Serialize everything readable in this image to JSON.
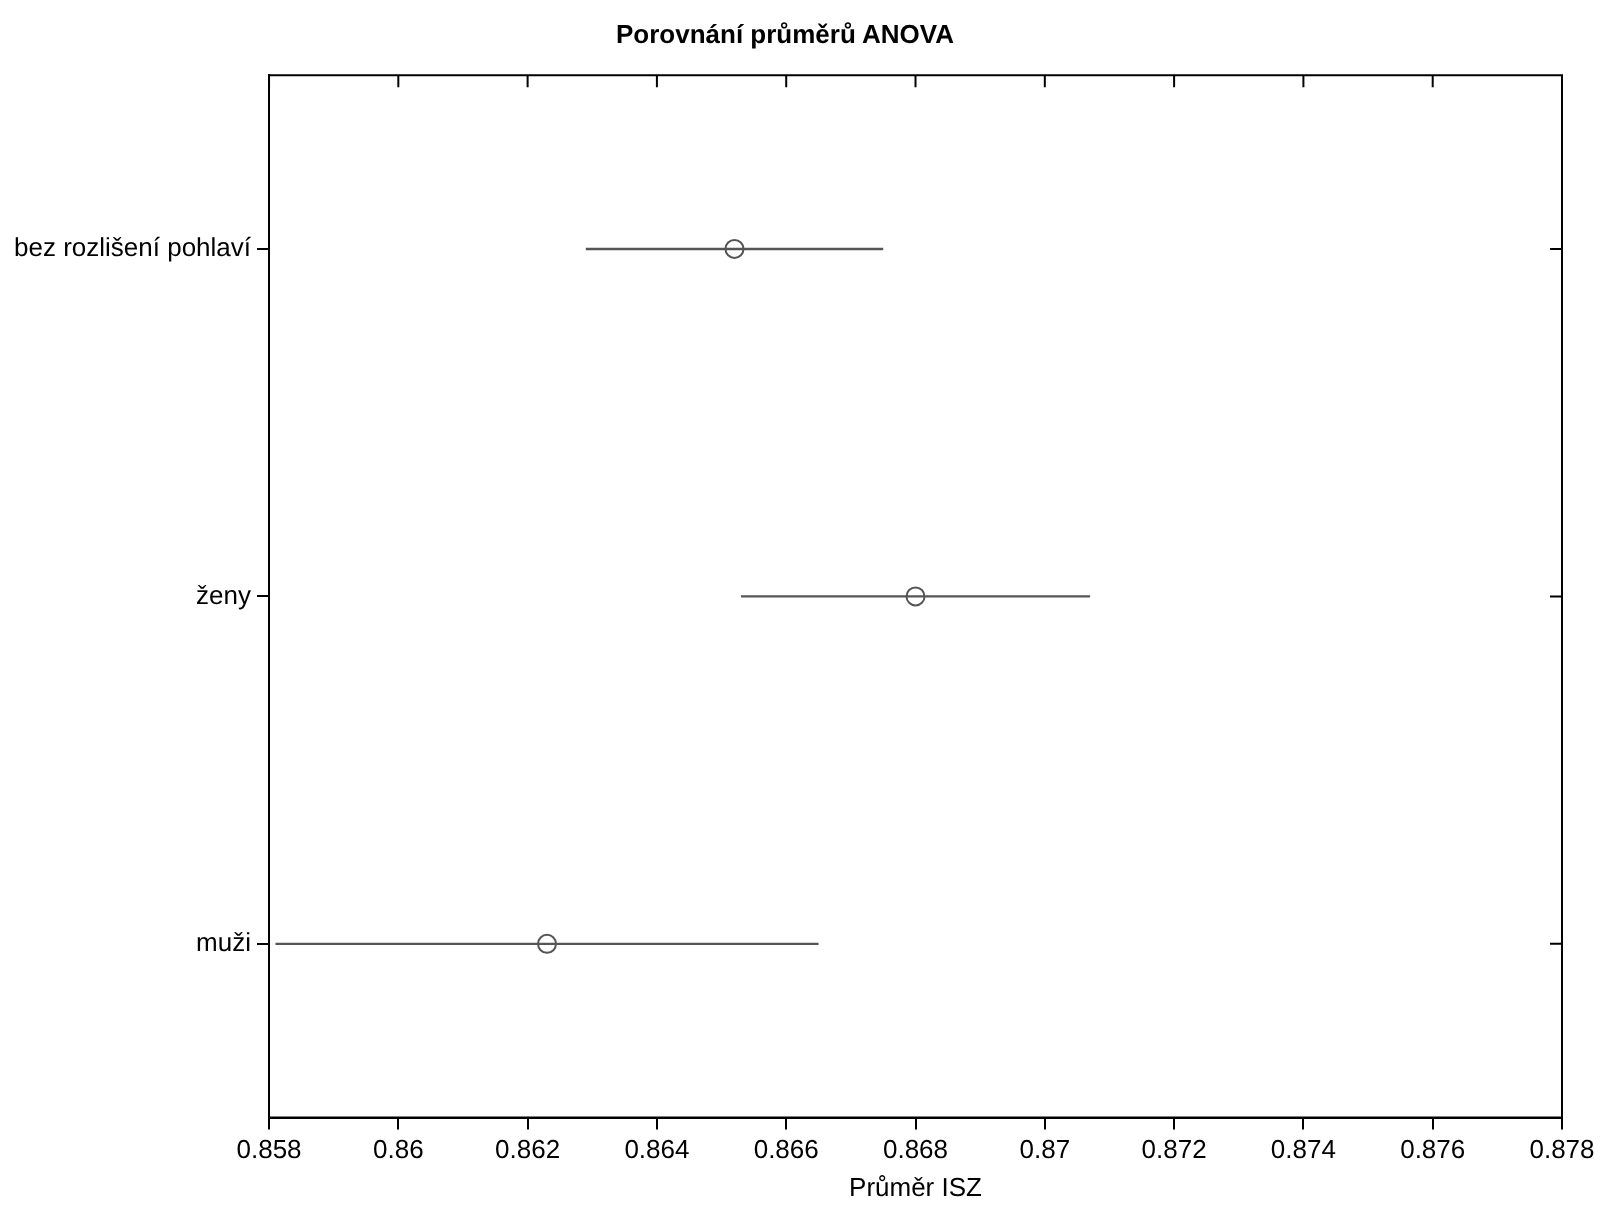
{
  "chart_data": {
    "type": "scatter",
    "orientation": "horizontal",
    "title": "Porovnání průměrů ANOVA",
    "xlabel": "Průměr ISZ",
    "categories": [
      "bez rozlišení pohlaví",
      "ženy",
      "muži"
    ],
    "values": [
      0.8652,
      0.868,
      0.8623
    ],
    "errors": [
      0.0023,
      0.0027,
      0.0042
    ],
    "color": "#555555",
    "marker": "circle",
    "grid": false,
    "xlim": [
      0.858,
      0.878
    ],
    "xticks": [
      0.858,
      0.86,
      0.862,
      0.864,
      0.866,
      0.868,
      0.87,
      0.872,
      0.874,
      0.876,
      0.878
    ]
  }
}
